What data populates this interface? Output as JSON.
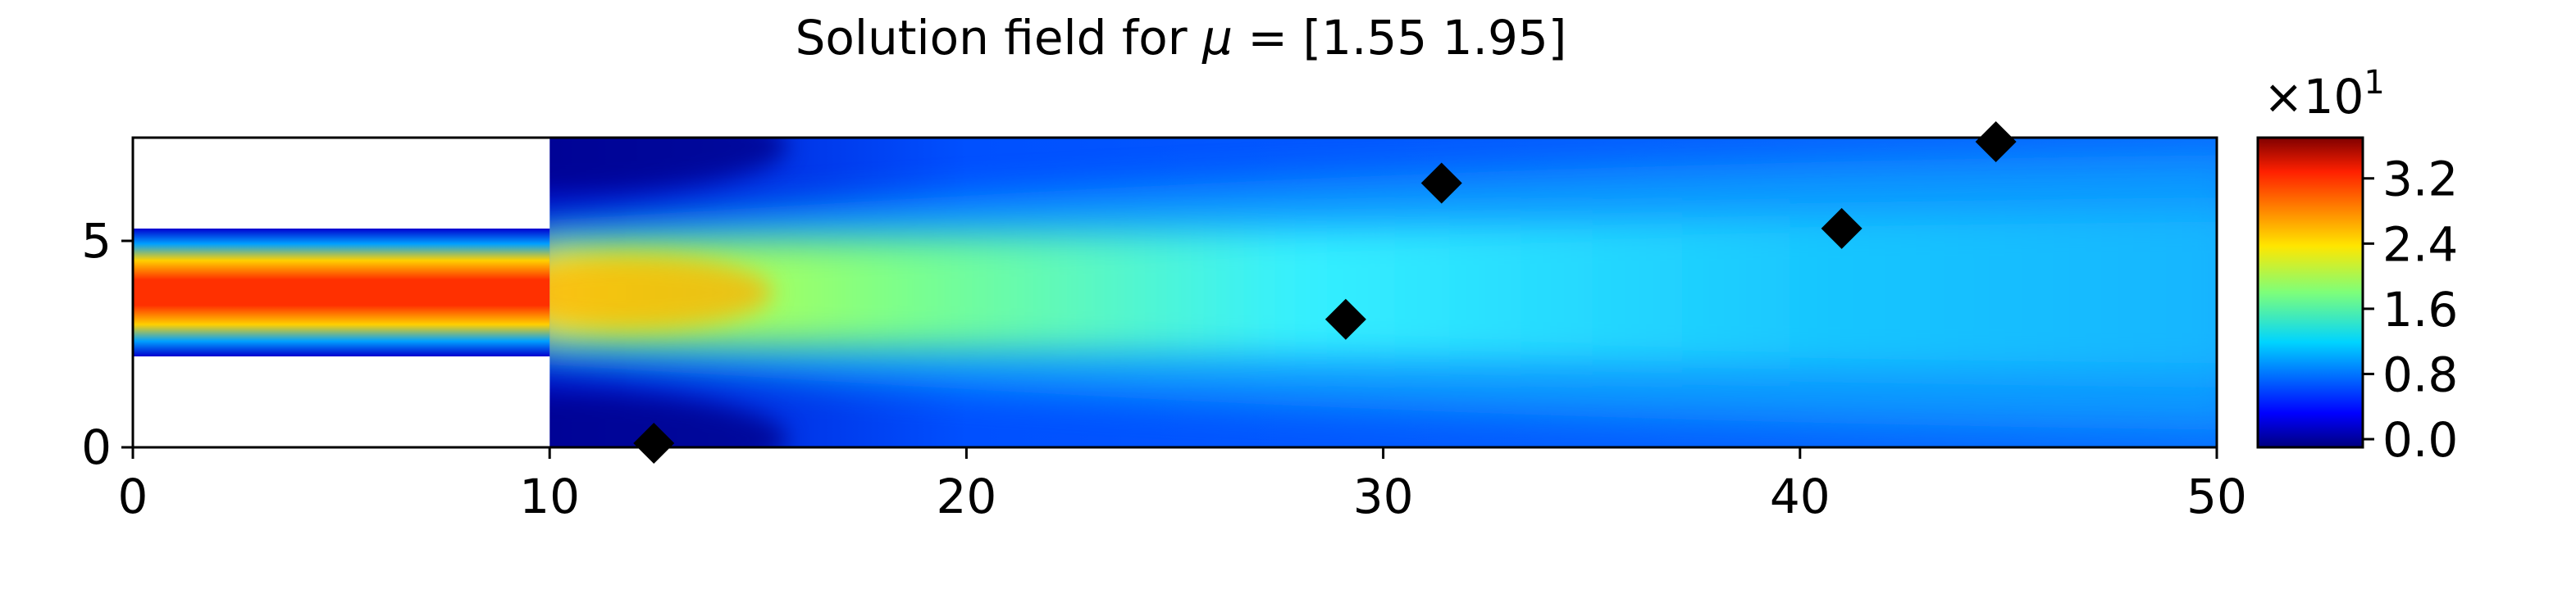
{
  "chart_data": {
    "type": "heatmap",
    "title_prefix": "Solution field for ",
    "title_mu": "μ",
    "title_suffix": " = [1.55 1.95]",
    "xlabel": "",
    "ylabel": "",
    "xlim": [
      0,
      50
    ],
    "ylim": [
      0,
      7.5
    ],
    "x_ticks": [
      0,
      10,
      20,
      30,
      40,
      50
    ],
    "y_ticks": [
      0,
      5
    ],
    "domain": {
      "inlet_channel": {
        "x": [
          0,
          10
        ],
        "y": [
          2.2,
          5.3
        ]
      },
      "main_channel": {
        "x": [
          10,
          50
        ],
        "y": [
          0,
          7.5
        ]
      }
    },
    "field_description": "jet flow entering from inlet channel and spreading downstream",
    "field_peak": 3.6,
    "colormap": "jet",
    "colorbar": {
      "range": [
        -0.1,
        3.7
      ],
      "ticks": [
        0.0,
        0.8,
        1.6,
        2.4,
        3.2
      ],
      "tick_labels": [
        "0.0",
        "0.8",
        "1.6",
        "2.4",
        "3.2"
      ],
      "multiplier_base": "×10",
      "multiplier_exp": "1"
    },
    "markers": {
      "shape": "diamond",
      "color": "#000000",
      "points": [
        {
          "x": 12.5,
          "y": 0.1
        },
        {
          "x": 29.1,
          "y": 3.1
        },
        {
          "x": 31.4,
          "y": 6.4
        },
        {
          "x": 41.0,
          "y": 5.3
        },
        {
          "x": 44.7,
          "y": 7.4
        }
      ]
    },
    "grid": false,
    "legend": "none"
  }
}
